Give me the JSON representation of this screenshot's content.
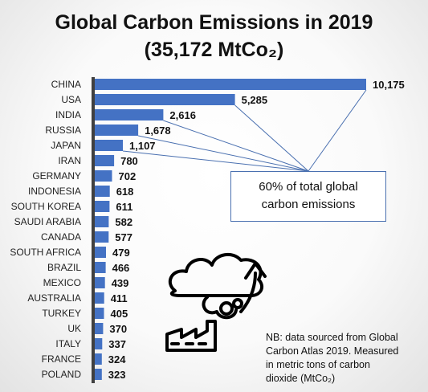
{
  "title_line1": "Global Carbon Emissions in 2019",
  "title_line2": "(35,172 MtCo₂)",
  "chart_data": {
    "type": "bar",
    "orientation": "horizontal",
    "title": "Global Carbon Emissions in 2019 (35,172 MtCo₂)",
    "categories": [
      "CHINA",
      "USA",
      "INDIA",
      "RUSSIA",
      "JAPAN",
      "IRAN",
      "GERMANY",
      "INDONESIA",
      "SOUTH KOREA",
      "SAUDI ARABIA",
      "CANADA",
      "SOUTH AFRICA",
      "BRAZIL",
      "MEXICO",
      "AUSTRALIA",
      "TURKEY",
      "UK",
      "ITALY",
      "FRANCE",
      "POLAND"
    ],
    "values": [
      10175,
      5285,
      2616,
      1678,
      1107,
      780,
      702,
      618,
      611,
      582,
      577,
      479,
      466,
      439,
      411,
      405,
      370,
      337,
      324,
      323
    ],
    "value_labels": [
      "10,175",
      "5,285",
      "2,616",
      "1,678",
      "1,107",
      "780",
      "702",
      "618",
      "611",
      "582",
      "577",
      "479",
      "466",
      "439",
      "411",
      "405",
      "370",
      "337",
      "324",
      "323"
    ],
    "bar_color": "#4472c4",
    "axis_color": "#404040",
    "grid": false,
    "legend": false
  },
  "callout": {
    "line1": "60% of total global",
    "line2": "carbon emissions",
    "points_to": [
      "CHINA",
      "USA",
      "INDIA",
      "RUSSIA",
      "JAPAN"
    ]
  },
  "note": {
    "line1": "NB: data sourced from Global",
    "line2": "Carbon Atlas 2019. Measured",
    "line3": "in metric tons of carbon",
    "line4": "dioxide (MtCo₂)"
  },
  "icon": "factory-cloud-co2-icon"
}
